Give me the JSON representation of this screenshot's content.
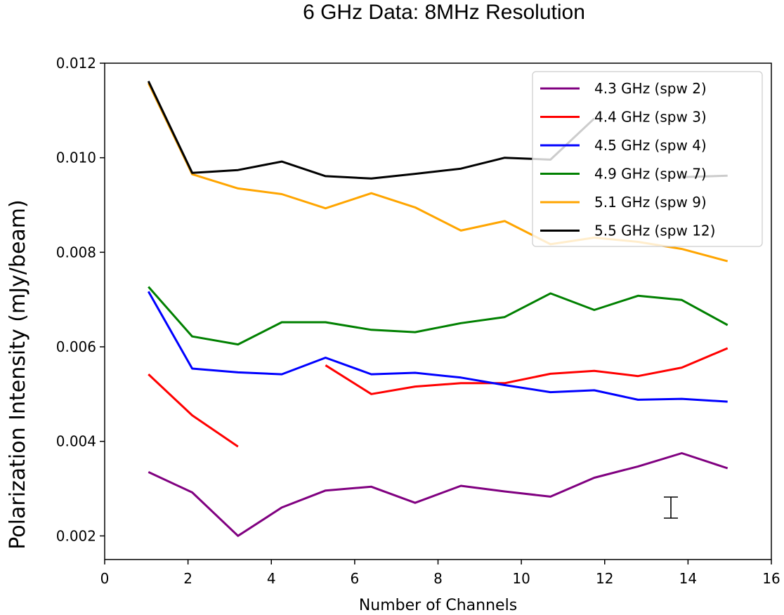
{
  "chart_data": {
    "type": "line",
    "title": "6 GHz Data: 8MHz Resolution",
    "xlabel": "Number of Channels",
    "ylabel": "Polarization Intensity (mJy/beam)",
    "xlim": [
      0,
      16
    ],
    "ylim": [
      0.0015,
      0.012
    ],
    "xticks": [
      0,
      2,
      4,
      6,
      8,
      10,
      12,
      14,
      16
    ],
    "xtick_labels": [
      "0",
      "2",
      "4",
      "6",
      "8",
      "10",
      "12",
      "14",
      "16"
    ],
    "yticks": [
      0.002,
      0.004,
      0.006,
      0.008,
      0.01,
      0.012
    ],
    "ytick_labels": [
      "0.002",
      "0.004",
      "0.006",
      "0.008",
      "0.010",
      "0.012"
    ],
    "legend_position": "top-right",
    "x": [
      1.05,
      2.1,
      3.2,
      4.25,
      5.3,
      6.4,
      7.45,
      8.55,
      9.6,
      10.7,
      11.75,
      12.8,
      13.85,
      14.95
    ],
    "series": [
      {
        "name": "4.3 GHz (spw 2)",
        "color": "#800080",
        "values": [
          0.00335,
          0.00292,
          0.002,
          0.0026,
          0.00296,
          0.00304,
          0.0027,
          0.00306,
          0.00294,
          0.00283,
          0.00323,
          0.00347,
          0.00375,
          0.00343
        ]
      },
      {
        "name": "4.4 GHz (spw 3)",
        "color": "#ff0000",
        "values": [
          0.00542,
          0.00455,
          0.00389,
          null,
          0.00561,
          0.005,
          0.00516,
          0.00523,
          0.00523,
          0.00543,
          0.00549,
          0.00538,
          0.00556,
          0.00597
        ]
      },
      {
        "name": "4.5 GHz (spw 4)",
        "color": "#0000ff",
        "values": [
          0.00717,
          0.00554,
          0.00546,
          0.00542,
          0.00577,
          0.00542,
          0.00545,
          0.00535,
          0.00519,
          0.00504,
          0.00508,
          0.00488,
          0.0049,
          0.00484
        ]
      },
      {
        "name": "4.9 GHz (spw 7)",
        "color": "#008000",
        "values": [
          0.00727,
          0.00622,
          0.00605,
          0.00652,
          0.00652,
          0.00636,
          0.00631,
          0.0065,
          0.00663,
          0.00713,
          0.00678,
          0.00708,
          0.00699,
          0.00646
        ]
      },
      {
        "name": "5.1 GHz (spw 9)",
        "color": "#ffa500",
        "values": [
          0.01158,
          0.00965,
          0.00935,
          0.00923,
          0.00893,
          0.00925,
          0.00895,
          0.00846,
          0.00866,
          0.00817,
          0.00831,
          0.00822,
          0.00807,
          0.00781
        ]
      },
      {
        "name": "5.5 GHz (spw 12)",
        "color": "#000000",
        "values": [
          0.01162,
          0.00968,
          0.00974,
          0.00992,
          0.00961,
          0.00956,
          0.00966,
          0.00977,
          0.01,
          0.00996,
          0.01083,
          null,
          0.00959,
          0.00962
        ]
      }
    ]
  }
}
